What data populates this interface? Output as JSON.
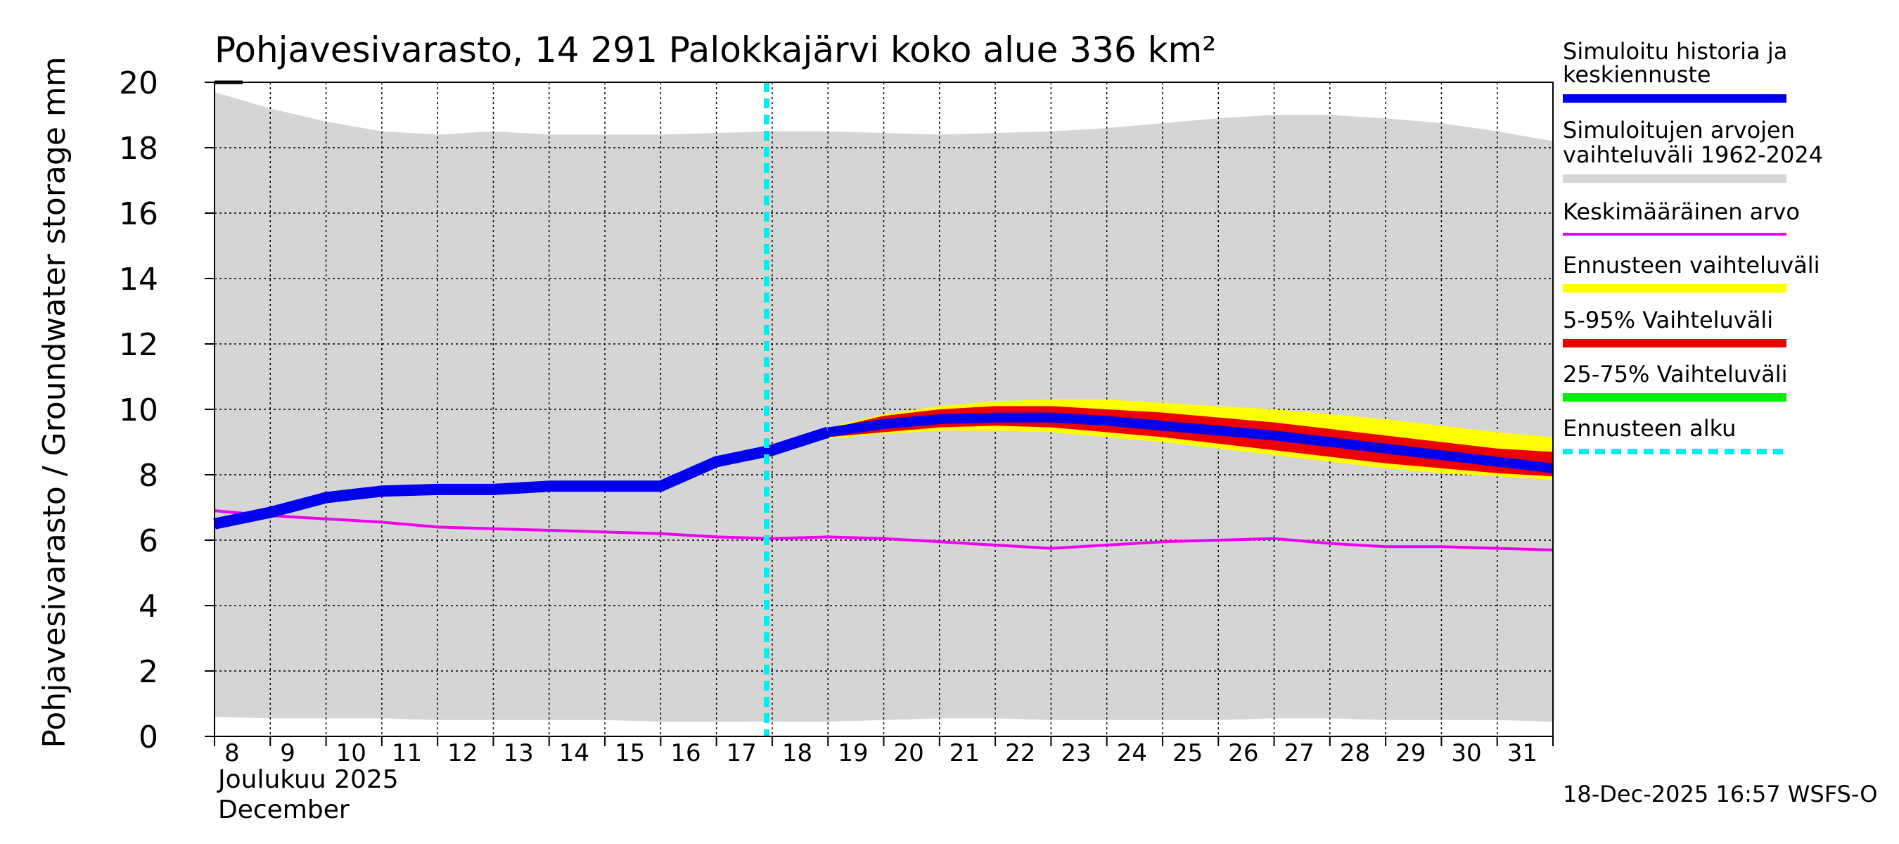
{
  "chart_data": {
    "type": "area",
    "title": "Pohjavesivarasto, 14 291 Palokkajärvi koko alue 336 km²",
    "ylabel": "Pohjavesivarasto / Groundwater storage   mm",
    "ylim": [
      0,
      20
    ],
    "yticks": [
      "0",
      "2",
      "4",
      "6",
      "8",
      "10",
      "12",
      "14",
      "16",
      "18",
      "20"
    ],
    "xlim": [
      8,
      32
    ],
    "xticks": [
      "8",
      "9",
      "10",
      "11",
      "12",
      "13",
      "14",
      "15",
      "16",
      "17",
      "18",
      "19",
      "20",
      "21",
      "22",
      "23",
      "24",
      "25",
      "26",
      "27",
      "28",
      "29",
      "30",
      "31"
    ],
    "xlabel_month_fi": "Joulukuu  2025",
    "xlabel_month_en": "December",
    "forecast_start": 17.9,
    "range_x": [
      8,
      9,
      10,
      11,
      12,
      13,
      14,
      15,
      16,
      17,
      18,
      19,
      20,
      21,
      22,
      23,
      24,
      25,
      26,
      27,
      28,
      29,
      30,
      31,
      32
    ],
    "range_upper": [
      19.7,
      19.2,
      18.8,
      18.5,
      18.4,
      18.5,
      18.4,
      18.4,
      18.4,
      18.45,
      18.5,
      18.5,
      18.45,
      18.4,
      18.45,
      18.5,
      18.6,
      18.75,
      18.9,
      19.0,
      19.0,
      18.9,
      18.75,
      18.5,
      18.2
    ],
    "range_lower": [
      0.6,
      0.55,
      0.55,
      0.55,
      0.5,
      0.5,
      0.5,
      0.5,
      0.45,
      0.45,
      0.45,
      0.45,
      0.5,
      0.55,
      0.55,
      0.5,
      0.5,
      0.5,
      0.5,
      0.55,
      0.55,
      0.5,
      0.5,
      0.5,
      0.45
    ],
    "history_x": [
      8,
      9,
      10,
      11,
      12,
      13,
      14,
      15,
      16,
      17,
      18,
      19
    ],
    "history_y": [
      6.5,
      6.85,
      7.3,
      7.5,
      7.55,
      7.55,
      7.65,
      7.65,
      7.65,
      8.4,
      8.75,
      9.3
    ],
    "fc_x": [
      19,
      20,
      21,
      22,
      23,
      24,
      25,
      26,
      27,
      28,
      29,
      30,
      31,
      32
    ],
    "fc_median": [
      9.3,
      9.55,
      9.7,
      9.75,
      9.75,
      9.65,
      9.5,
      9.35,
      9.2,
      9.0,
      8.8,
      8.6,
      8.4,
      8.2
    ],
    "fc_yellow_lo": [
      9.1,
      9.25,
      9.35,
      9.35,
      9.3,
      9.15,
      9.0,
      8.8,
      8.6,
      8.4,
      8.2,
      8.05,
      7.95,
      7.85
    ],
    "fc_yellow_hi": [
      9.45,
      9.85,
      10.1,
      10.25,
      10.3,
      10.3,
      10.2,
      10.1,
      10.0,
      9.85,
      9.7,
      9.5,
      9.3,
      9.15
    ],
    "fc_red_lo": [
      9.15,
      9.3,
      9.45,
      9.5,
      9.45,
      9.3,
      9.15,
      8.95,
      8.75,
      8.55,
      8.35,
      8.2,
      8.05,
      7.95
    ],
    "fc_red_hi": [
      9.4,
      9.8,
      10.0,
      10.1,
      10.1,
      10.0,
      9.9,
      9.75,
      9.6,
      9.4,
      9.2,
      9.0,
      8.8,
      8.7
    ],
    "fc_green_lo": [
      9.25,
      9.5,
      9.62,
      9.65,
      9.65,
      9.55,
      9.4,
      9.25,
      9.1,
      8.9,
      8.7,
      8.5,
      8.3,
      8.1
    ],
    "fc_green_hi": [
      9.35,
      9.62,
      9.78,
      9.85,
      9.85,
      9.75,
      9.6,
      9.45,
      9.3,
      9.1,
      8.9,
      8.7,
      8.5,
      8.3
    ],
    "mean_x": [
      8,
      9,
      10,
      11,
      12,
      13,
      14,
      15,
      16,
      17,
      18,
      19,
      20,
      21,
      22,
      23,
      24,
      25,
      26,
      27,
      28,
      29,
      30,
      31,
      32
    ],
    "mean_y": [
      6.9,
      6.75,
      6.65,
      6.55,
      6.4,
      6.35,
      6.3,
      6.25,
      6.2,
      6.1,
      6.05,
      6.1,
      6.05,
      5.95,
      5.85,
      5.75,
      5.85,
      5.95,
      6.0,
      6.05,
      5.9,
      5.8,
      5.8,
      5.75,
      5.7
    ],
    "colors": {
      "range": "#d5d5d5",
      "history": "#0000ee",
      "mean": "#ee00ee",
      "yellow": "#ffff00",
      "red": "#ee0000",
      "green": "#00ee00",
      "forecast_start": "#00eeee",
      "grid": "#000000"
    },
    "legend": [
      {
        "label_lines": [
          "Simuloitu historia ja",
          "keskiennuste"
        ],
        "color": "#0000ee",
        "style": "solid"
      },
      {
        "label_lines": [
          "Simuloitujen arvojen",
          "vaihteluväli 1962-2024"
        ],
        "color": "#d5d5d5",
        "style": "solid"
      },
      {
        "label_lines": [
          "Keskimääräinen arvo"
        ],
        "color": "#ee00ee",
        "style": "thin"
      },
      {
        "label_lines": [
          "Ennusteen vaihteluväli"
        ],
        "color": "#ffff00",
        "style": "solid"
      },
      {
        "label_lines": [
          "5-95% Vaihteluväli"
        ],
        "color": "#ee0000",
        "style": "solid"
      },
      {
        "label_lines": [
          "25-75% Vaihteluväli"
        ],
        "color": "#00ee00",
        "style": "solid"
      },
      {
        "label_lines": [
          "Ennusteen alku"
        ],
        "color": "#00eeee",
        "style": "dashed"
      }
    ],
    "timestamp": "18-Dec-2025 16:57 WSFS-O"
  }
}
